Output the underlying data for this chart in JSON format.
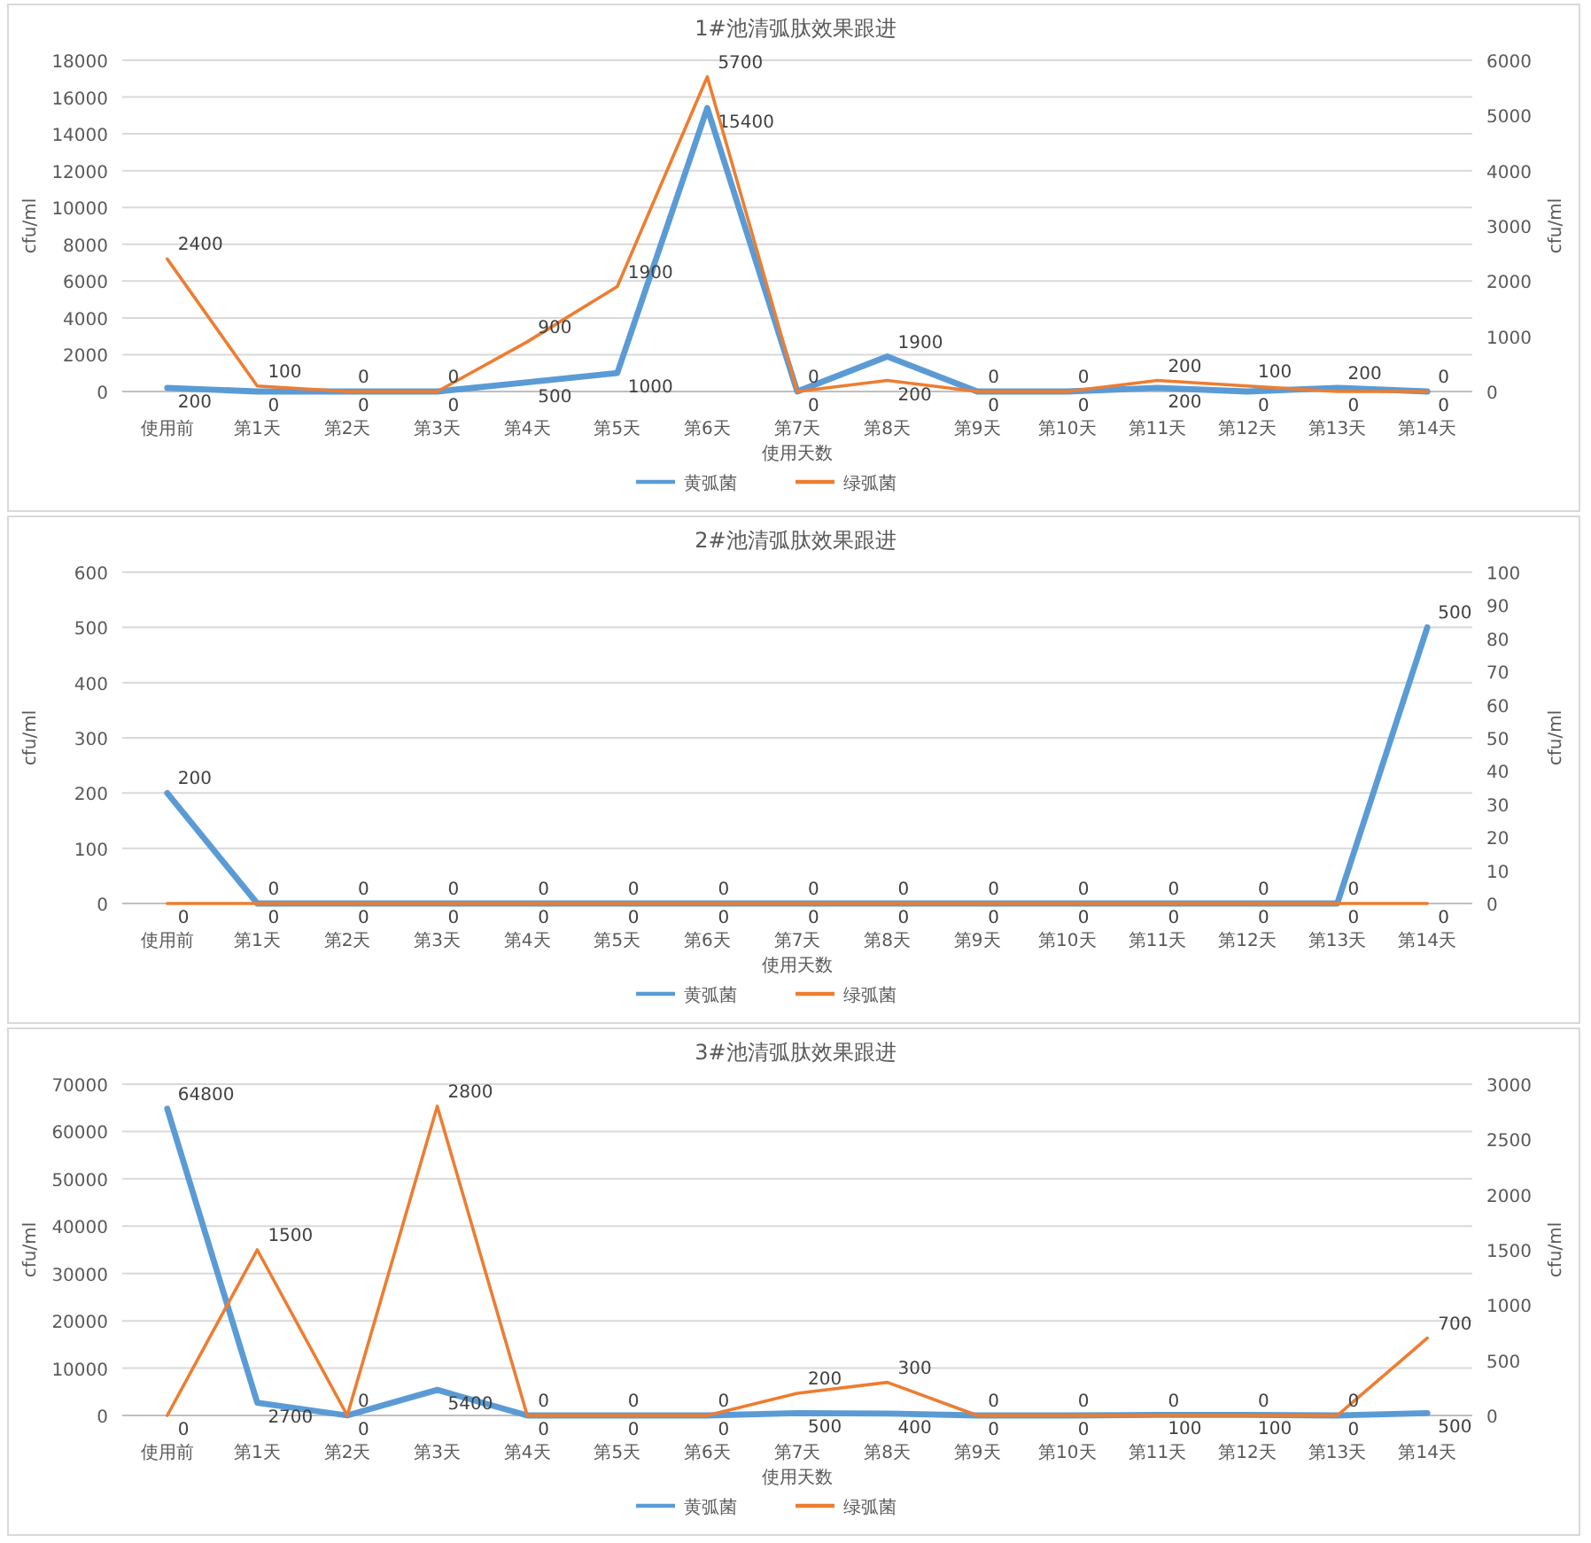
{
  "chart_data": [
    {
      "type": "line",
      "title": "1#池清弧肽效果跟进",
      "xlabel": "使用天数",
      "ylabel": "cfu/ml",
      "y2label": "cfu/ml",
      "categories": [
        "使用前",
        "第1天",
        "第2天",
        "第3天",
        "第4天",
        "第5天",
        "第6天",
        "第7天",
        "第8天",
        "第9天",
        "第10天",
        "第11天",
        "第12天",
        "第13天",
        "第14天"
      ],
      "series": [
        {
          "name": "黄弧菌",
          "color": "#5b9bd5",
          "values": [
            200,
            0,
            0,
            0,
            500,
            1000,
            15400,
            0,
            1900,
            0,
            0,
            200,
            0,
            200,
            0
          ]
        },
        {
          "name": "绿弧菌",
          "color": "#ed7d31",
          "axis": "y2",
          "values": [
            2400,
            100,
            0,
            0,
            900,
            1900,
            5700,
            0,
            200,
            0,
            0,
            200,
            100,
            0,
            0
          ]
        }
      ],
      "ylim": [
        0,
        18000
      ],
      "yticks": [
        0,
        2000,
        4000,
        6000,
        8000,
        10000,
        12000,
        14000,
        16000,
        18000
      ],
      "y2lim": [
        0,
        6000
      ],
      "y2ticks": [
        0,
        1000,
        2000,
        3000,
        4000,
        5000,
        6000
      ],
      "grid": "y",
      "legend": "bottom",
      "data_labels": true
    },
    {
      "type": "line",
      "title": "2#池清弧肽效果跟进",
      "xlabel": "使用天数",
      "ylabel": "cfu/ml",
      "y2label": "cfu/ml",
      "categories": [
        "使用前",
        "第1天",
        "第2天",
        "第3天",
        "第4天",
        "第5天",
        "第6天",
        "第7天",
        "第8天",
        "第9天",
        "第10天",
        "第11天",
        "第12天",
        "第13天",
        "第14天"
      ],
      "series": [
        {
          "name": "黄弧菌",
          "color": "#5b9bd5",
          "values": [
            200,
            0,
            0,
            0,
            0,
            0,
            0,
            0,
            0,
            0,
            0,
            0,
            0,
            0,
            500
          ]
        },
        {
          "name": "绿弧菌",
          "color": "#ed7d31",
          "axis": "y2",
          "values": [
            0,
            0,
            0,
            0,
            0,
            0,
            0,
            0,
            0,
            0,
            0,
            0,
            0,
            0,
            0
          ]
        }
      ],
      "ylim": [
        0,
        600
      ],
      "yticks": [
        0,
        100,
        200,
        300,
        400,
        500,
        600
      ],
      "y2lim": [
        0,
        100
      ],
      "y2ticks": [
        0,
        10,
        20,
        30,
        40,
        50,
        60,
        70,
        80,
        90,
        100
      ],
      "grid": "y",
      "legend": "bottom",
      "data_labels": true
    },
    {
      "type": "line",
      "title": "3#池清弧肽效果跟进",
      "xlabel": "使用天数",
      "ylabel": "cfu/ml",
      "y2label": "cfu/ml",
      "categories": [
        "使用前",
        "第1天",
        "第2天",
        "第3天",
        "第4天",
        "第5天",
        "第6天",
        "第7天",
        "第8天",
        "第9天",
        "第10天",
        "第11天",
        "第12天",
        "第13天",
        "第14天"
      ],
      "series": [
        {
          "name": "黄弧菌",
          "color": "#5b9bd5",
          "values": [
            64800,
            2700,
            0,
            5400,
            0,
            0,
            0,
            500,
            400,
            0,
            0,
            100,
            100,
            0,
            500
          ]
        },
        {
          "name": "绿弧菌",
          "color": "#ed7d31",
          "axis": "y2",
          "values": [
            0,
            1500,
            0,
            2800,
            0,
            0,
            0,
            200,
            300,
            0,
            0,
            0,
            0,
            0,
            700
          ]
        }
      ],
      "ylim": [
        0,
        70000
      ],
      "yticks": [
        0,
        10000,
        20000,
        30000,
        40000,
        50000,
        60000,
        70000
      ],
      "y2lim": [
        0,
        3000
      ],
      "y2ticks": [
        0,
        500,
        1000,
        1500,
        2000,
        2500,
        3000
      ],
      "grid": "y",
      "legend": "bottom",
      "data_labels": true
    }
  ]
}
